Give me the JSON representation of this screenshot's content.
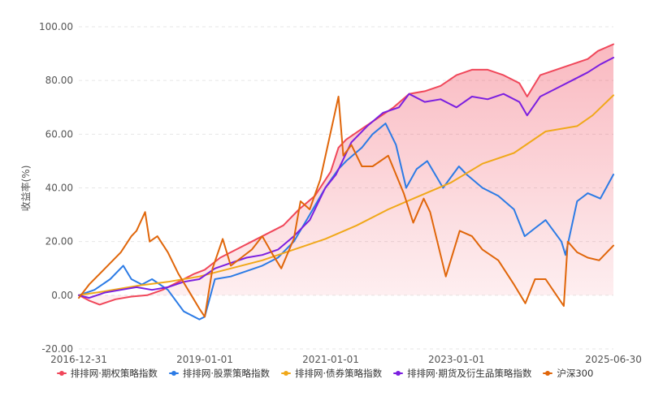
{
  "chart_data": {
    "type": "line",
    "ylabel": "收益率(%)",
    "ylim": [
      -20,
      100
    ],
    "yticks": [
      "100.00",
      "80.00",
      "60.00",
      "40.00",
      "20.00",
      "0.00",
      "-20.00"
    ],
    "xticks": [
      "2016-12-31",
      "2019-01-01",
      "2021-01-01",
      "2023-01-01",
      "2025-06-30"
    ],
    "x_range": [
      "2016-12-31",
      "2025-06-30"
    ],
    "grid": "horizontal dashed",
    "legend_position": "bottom",
    "series": [
      {
        "name": "排排网·期权策略指数",
        "color": "#f0475a",
        "area": true,
        "points": [
          [
            "2016-12-31",
            0
          ],
          [
            "2017-03-01",
            -2
          ],
          [
            "2017-05-01",
            -3.5
          ],
          [
            "2017-08-01",
            -1.5
          ],
          [
            "2017-11-01",
            -0.5
          ],
          [
            "2018-02-01",
            0
          ],
          [
            "2018-05-01",
            2
          ],
          [
            "2018-08-01",
            5
          ],
          [
            "2018-11-01",
            8
          ],
          [
            "2019-01-01",
            9.5
          ],
          [
            "2019-04-01",
            14
          ],
          [
            "2019-07-01",
            17
          ],
          [
            "2019-10-01",
            20
          ],
          [
            "2020-01-01",
            23
          ],
          [
            "2020-04-01",
            26
          ],
          [
            "2020-07-01",
            32
          ],
          [
            "2020-10-01",
            37
          ],
          [
            "2021-01-01",
            46
          ],
          [
            "2021-02-15",
            55
          ],
          [
            "2021-04-01",
            58
          ],
          [
            "2021-07-01",
            62
          ],
          [
            "2021-10-01",
            66
          ],
          [
            "2022-01-01",
            70
          ],
          [
            "2022-04-01",
            75
          ],
          [
            "2022-07-01",
            76
          ],
          [
            "2022-10-01",
            78
          ],
          [
            "2023-01-01",
            82
          ],
          [
            "2023-04-01",
            84
          ],
          [
            "2023-07-01",
            84
          ],
          [
            "2023-10-01",
            82
          ],
          [
            "2024-01-01",
            79
          ],
          [
            "2024-02-15",
            74
          ],
          [
            "2024-05-01",
            82
          ],
          [
            "2024-08-01",
            84
          ],
          [
            "2024-11-01",
            86
          ],
          [
            "2025-02-01",
            88
          ],
          [
            "2025-04-01",
            91
          ],
          [
            "2025-06-30",
            93.5
          ]
        ]
      },
      {
        "name": "排排网·股票策略指数",
        "color": "#2c7be5",
        "area": false,
        "points": [
          [
            "2016-12-31",
            0
          ],
          [
            "2017-04-01",
            2
          ],
          [
            "2017-07-01",
            6
          ],
          [
            "2017-09-15",
            11
          ],
          [
            "2017-11-01",
            6
          ],
          [
            "2018-01-01",
            4
          ],
          [
            "2018-03-01",
            6
          ],
          [
            "2018-06-01",
            2
          ],
          [
            "2018-09-01",
            -6
          ],
          [
            "2018-12-01",
            -9
          ],
          [
            "2019-01-01",
            -8
          ],
          [
            "2019-03-01",
            6
          ],
          [
            "2019-06-01",
            7
          ],
          [
            "2019-09-01",
            9
          ],
          [
            "2019-12-01",
            11
          ],
          [
            "2020-03-01",
            14
          ],
          [
            "2020-06-01",
            20
          ],
          [
            "2020-09-01",
            30
          ],
          [
            "2020-12-01",
            40
          ],
          [
            "2021-02-15",
            47
          ],
          [
            "2021-04-01",
            50
          ],
          [
            "2021-07-01",
            55
          ],
          [
            "2021-09-01",
            60
          ],
          [
            "2021-11-15",
            64
          ],
          [
            "2022-01-15",
            56
          ],
          [
            "2022-03-15",
            40
          ],
          [
            "2022-05-15",
            47
          ],
          [
            "2022-07-15",
            50
          ],
          [
            "2022-10-15",
            40
          ],
          [
            "2023-01-15",
            48
          ],
          [
            "2023-03-01",
            45
          ],
          [
            "2023-06-01",
            40
          ],
          [
            "2023-09-01",
            37
          ],
          [
            "2023-12-01",
            32
          ],
          [
            "2024-02-01",
            22
          ],
          [
            "2024-04-01",
            25
          ],
          [
            "2024-06-01",
            28
          ],
          [
            "2024-09-01",
            20
          ],
          [
            "2024-09-25",
            15
          ],
          [
            "2024-12-01",
            35
          ],
          [
            "2025-02-01",
            38
          ],
          [
            "2025-04-15",
            36
          ],
          [
            "2025-06-30",
            45
          ]
        ]
      },
      {
        "name": "排排网·债券策略指数",
        "color": "#f0a81a",
        "area": false,
        "points": [
          [
            "2016-12-31",
            0
          ],
          [
            "2017-06-01",
            1.5
          ],
          [
            "2017-12-01",
            3.5
          ],
          [
            "2018-06-01",
            5
          ],
          [
            "2018-12-01",
            7
          ],
          [
            "2019-06-01",
            10
          ],
          [
            "2019-12-01",
            13
          ],
          [
            "2020-06-01",
            17
          ],
          [
            "2020-12-01",
            21
          ],
          [
            "2021-06-01",
            26
          ],
          [
            "2021-12-01",
            32
          ],
          [
            "2022-06-01",
            37
          ],
          [
            "2022-12-01",
            42
          ],
          [
            "2023-06-01",
            49
          ],
          [
            "2023-12-01",
            53
          ],
          [
            "2024-06-01",
            61
          ],
          [
            "2024-12-01",
            63
          ],
          [
            "2025-03-01",
            67
          ],
          [
            "2025-06-30",
            74.5
          ]
        ]
      },
      {
        "name": "排排网·期货及衍生品策略指数",
        "color": "#7b1fe0",
        "area": false,
        "points": [
          [
            "2016-12-31",
            0
          ],
          [
            "2017-03-01",
            -1
          ],
          [
            "2017-06-01",
            1
          ],
          [
            "2017-09-01",
            2
          ],
          [
            "2017-12-01",
            3
          ],
          [
            "2018-03-01",
            2
          ],
          [
            "2018-06-01",
            3
          ],
          [
            "2018-09-01",
            5
          ],
          [
            "2018-12-01",
            6
          ],
          [
            "2019-03-01",
            10
          ],
          [
            "2019-06-01",
            12
          ],
          [
            "2019-09-01",
            14
          ],
          [
            "2019-12-01",
            15
          ],
          [
            "2020-03-01",
            17
          ],
          [
            "2020-06-01",
            22
          ],
          [
            "2020-09-01",
            28
          ],
          [
            "2020-12-01",
            40
          ],
          [
            "2021-02-01",
            45
          ],
          [
            "2021-05-01",
            57
          ],
          [
            "2021-08-01",
            63
          ],
          [
            "2021-11-01",
            68
          ],
          [
            "2022-02-01",
            70
          ],
          [
            "2022-04-01",
            75
          ],
          [
            "2022-07-01",
            72
          ],
          [
            "2022-10-01",
            73
          ],
          [
            "2023-01-01",
            70
          ],
          [
            "2023-04-01",
            74
          ],
          [
            "2023-07-01",
            73
          ],
          [
            "2023-10-01",
            75
          ],
          [
            "2024-01-01",
            72
          ],
          [
            "2024-02-15",
            67
          ],
          [
            "2024-05-01",
            74
          ],
          [
            "2024-08-01",
            77
          ],
          [
            "2024-11-01",
            80
          ],
          [
            "2025-02-01",
            83
          ],
          [
            "2025-04-15",
            86
          ],
          [
            "2025-06-30",
            88.5
          ]
        ]
      },
      {
        "name": "沪深300",
        "color": "#e0660a",
        "area": false,
        "points": [
          [
            "2016-12-31",
            -1
          ],
          [
            "2017-03-01",
            4
          ],
          [
            "2017-06-01",
            10
          ],
          [
            "2017-09-01",
            16
          ],
          [
            "2017-11-01",
            22
          ],
          [
            "2017-12-01",
            24
          ],
          [
            "2018-01-20",
            31
          ],
          [
            "2018-02-15",
            20
          ],
          [
            "2018-04-01",
            22
          ],
          [
            "2018-06-01",
            16
          ],
          [
            "2018-08-01",
            8
          ],
          [
            "2018-10-15",
            0
          ],
          [
            "2018-12-01",
            -5
          ],
          [
            "2019-01-01",
            -8
          ],
          [
            "2019-02-15",
            10
          ],
          [
            "2019-04-15",
            21
          ],
          [
            "2019-06-01",
            11
          ],
          [
            "2019-08-01",
            14
          ],
          [
            "2019-10-01",
            17
          ],
          [
            "2019-12-01",
            22
          ],
          [
            "2020-02-01",
            15
          ],
          [
            "2020-03-20",
            10
          ],
          [
            "2020-06-01",
            21
          ],
          [
            "2020-07-10",
            35
          ],
          [
            "2020-09-01",
            32
          ],
          [
            "2020-11-01",
            43
          ],
          [
            "2021-02-15",
            74
          ],
          [
            "2021-03-15",
            52
          ],
          [
            "2021-05-01",
            56
          ],
          [
            "2021-07-01",
            48
          ],
          [
            "2021-09-01",
            48
          ],
          [
            "2021-12-01",
            52
          ],
          [
            "2022-03-01",
            38
          ],
          [
            "2022-04-25",
            27
          ],
          [
            "2022-06-25",
            36
          ],
          [
            "2022-08-01",
            31
          ],
          [
            "2022-10-31",
            7
          ],
          [
            "2023-01-20",
            24
          ],
          [
            "2023-04-01",
            22
          ],
          [
            "2023-06-01",
            17
          ],
          [
            "2023-09-01",
            13
          ],
          [
            "2023-12-01",
            4
          ],
          [
            "2024-02-05",
            -3
          ],
          [
            "2024-04-01",
            6
          ],
          [
            "2024-06-01",
            6
          ],
          [
            "2024-09-15",
            -4
          ],
          [
            "2024-10-08",
            20
          ],
          [
            "2024-12-01",
            16
          ],
          [
            "2025-02-01",
            14
          ],
          [
            "2025-04-08",
            13
          ],
          [
            "2025-06-30",
            18.5
          ]
        ]
      }
    ]
  }
}
